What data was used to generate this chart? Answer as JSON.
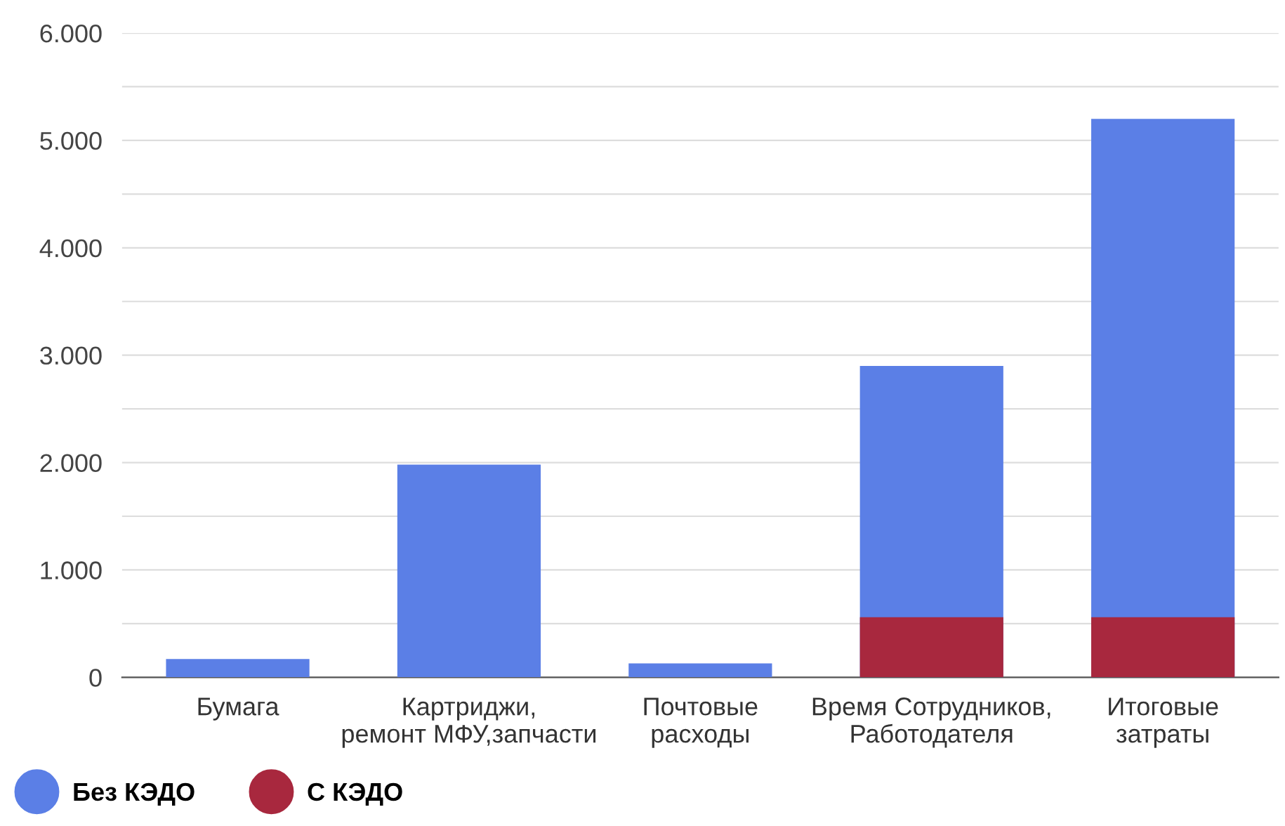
{
  "chart_data": {
    "type": "bar",
    "categories": [
      "Бумага",
      "Картриджи,\nремонт МФУ,запчасти",
      "Почтовые\nрасходы",
      "Время Сотрудников,\nРаботодателя",
      "Итоговые\nзатраты"
    ],
    "series": [
      {
        "name": "Без КЭДО",
        "color": "#5b7fe6",
        "values": [
          170,
          1980,
          130,
          2900,
          5200
        ]
      },
      {
        "name": "С КЭДО",
        "color": "#a8283e",
        "values": [
          null,
          null,
          null,
          560,
          560
        ]
      }
    ],
    "ylim": [
      0,
      6000
    ],
    "yticks": [
      {
        "value": 0,
        "label": "0"
      },
      {
        "value": 500,
        "label": null
      },
      {
        "value": 1000,
        "label": "1.000"
      },
      {
        "value": 1500,
        "label": null
      },
      {
        "value": 2000,
        "label": "2.000"
      },
      {
        "value": 2500,
        "label": null
      },
      {
        "value": 3000,
        "label": "3.000"
      },
      {
        "value": 3500,
        "label": null
      },
      {
        "value": 4000,
        "label": "4.000"
      },
      {
        "value": 4500,
        "label": null
      },
      {
        "value": 5000,
        "label": "5.000"
      },
      {
        "value": 5500,
        "label": null
      },
      {
        "value": 6000,
        "label": "6.000"
      }
    ],
    "grid": "y",
    "legend": "bottom left"
  }
}
